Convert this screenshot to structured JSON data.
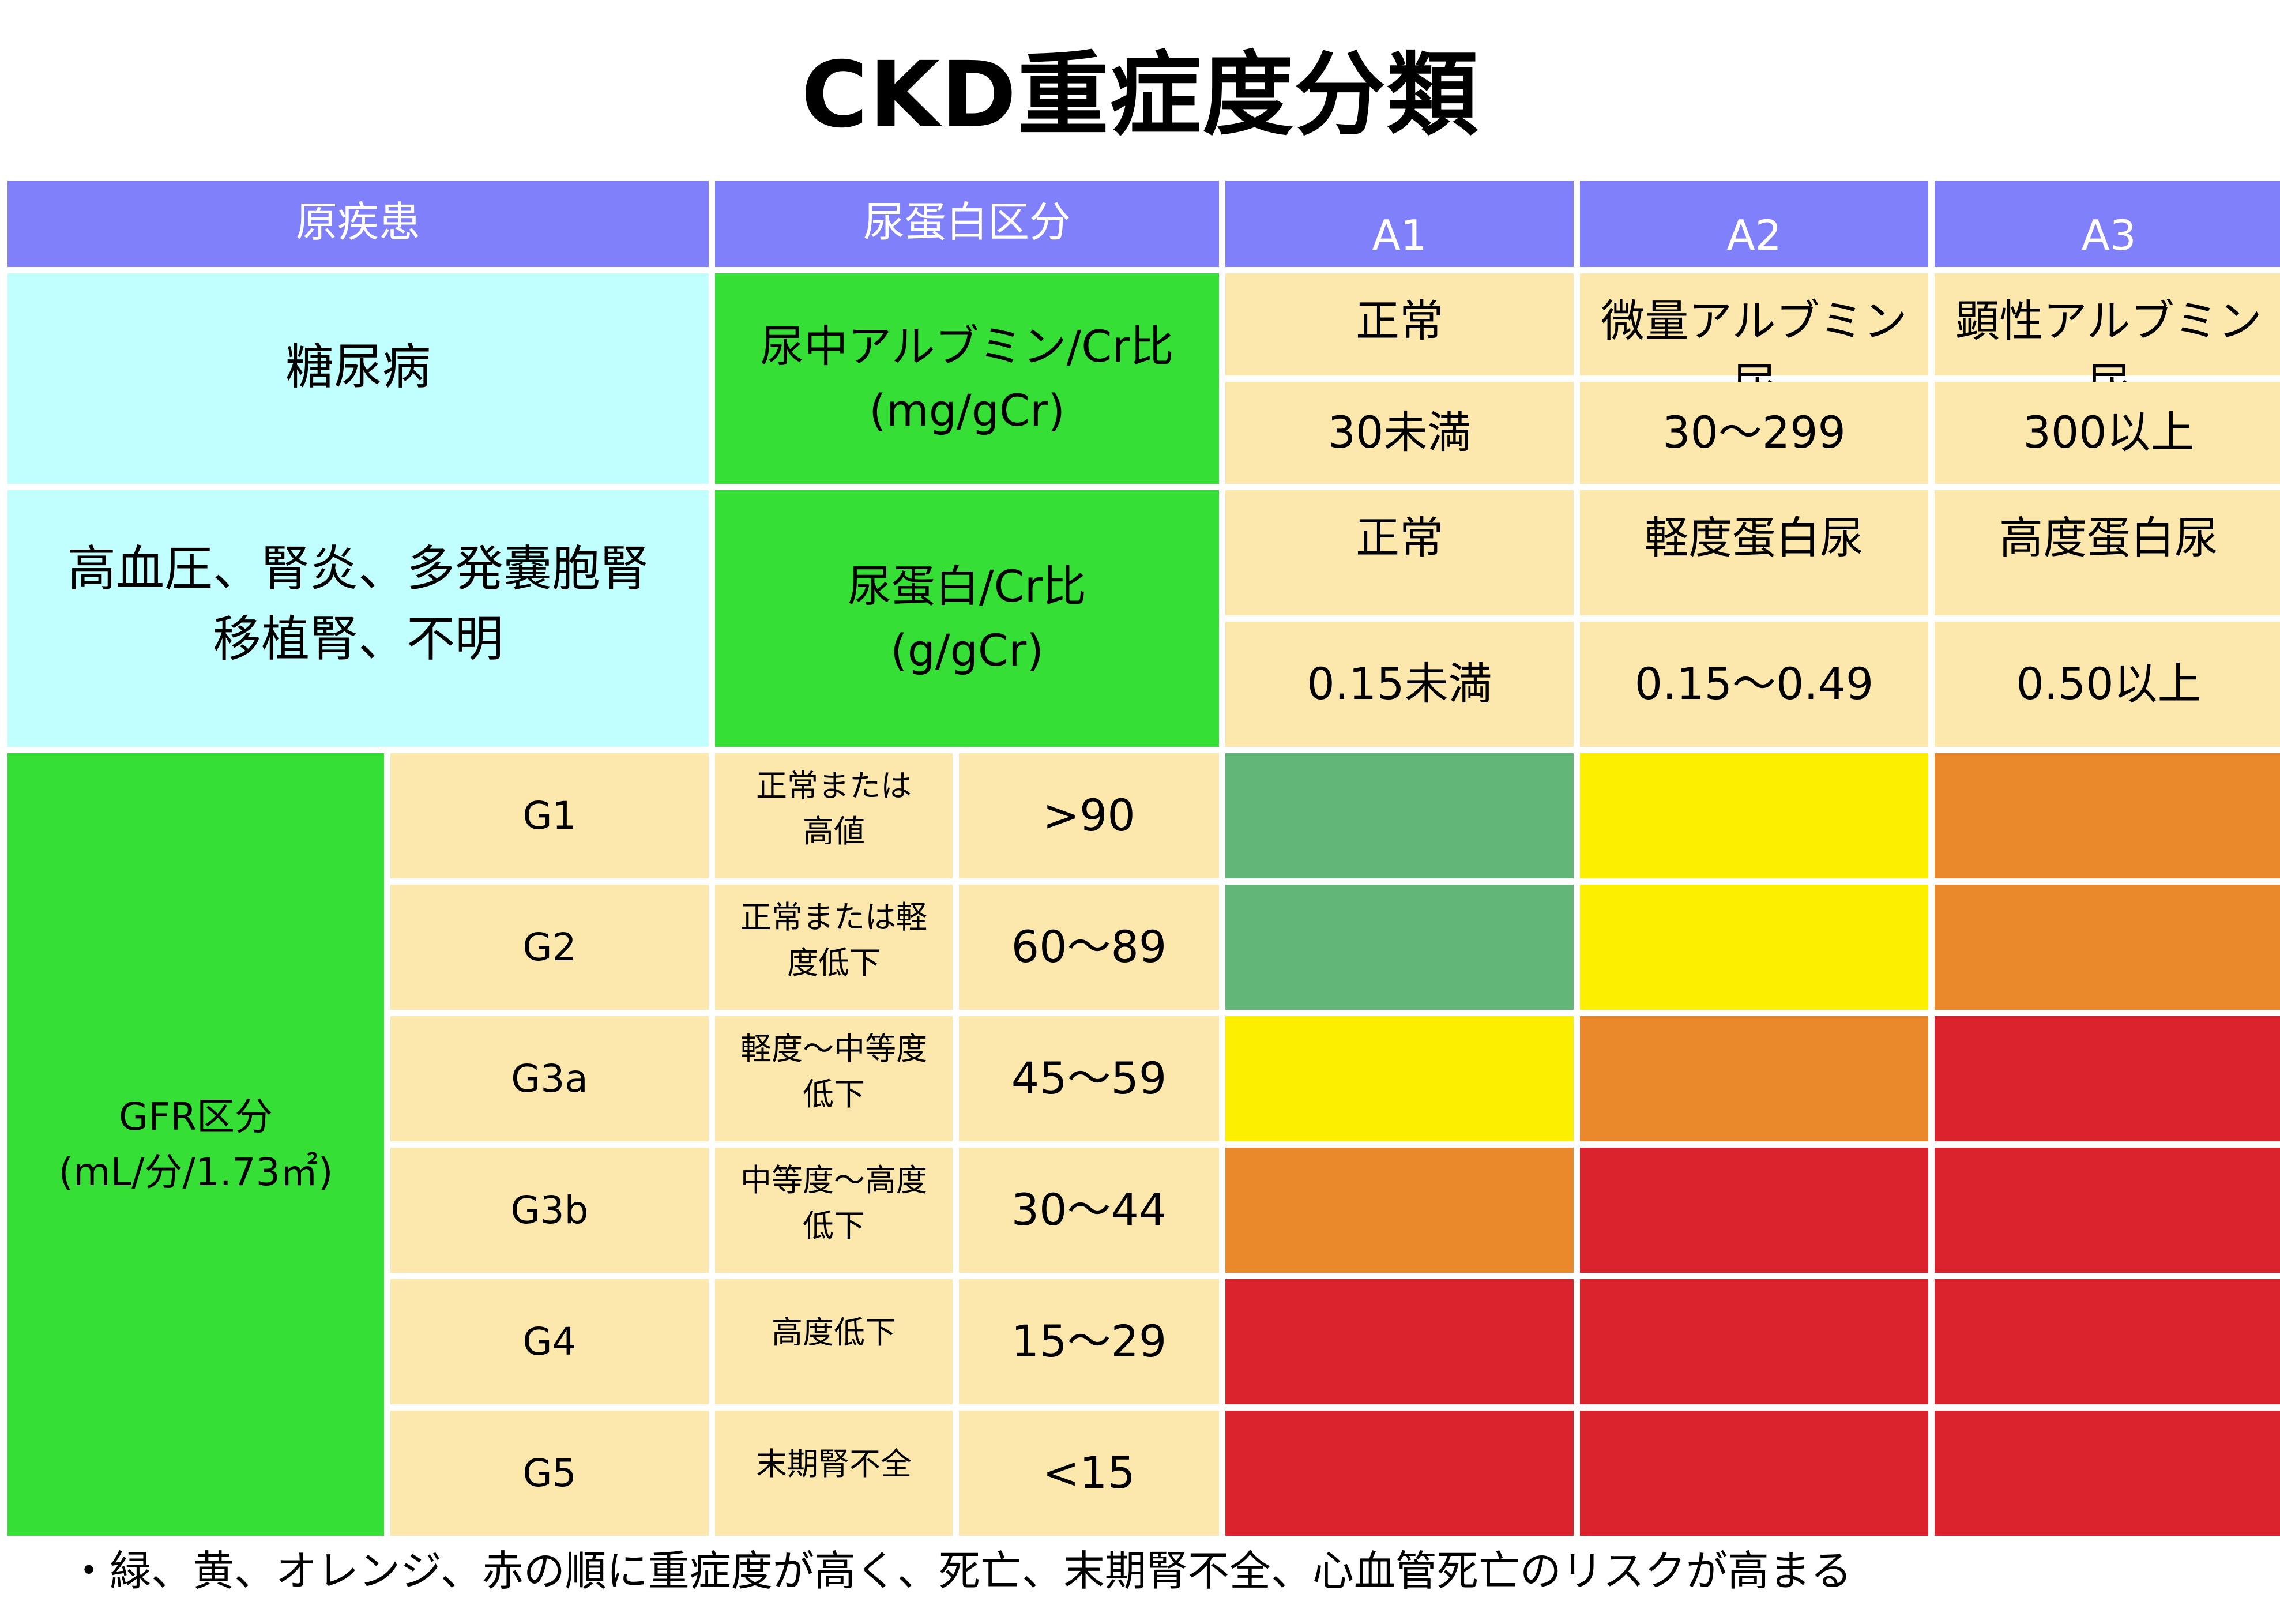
{
  "title": "CKD重症度分類",
  "header": {
    "disease_label": "原疾患",
    "protein_label": "尿蛋白区分",
    "a1": "A1",
    "a2": "A2",
    "a3": "A3"
  },
  "diabetes": {
    "label": "糖尿病",
    "measure_line1": "尿中アルブミン/Cr比",
    "measure_line2": "(mg/gCr)",
    "a1_name": "正常",
    "a2_name": "微量アルブミン尿",
    "a3_name": "顕性アルブミン尿",
    "a1_value": "30未満",
    "a2_value": "30〜299",
    "a3_value": "300以上"
  },
  "other": {
    "label_line1": "高血圧、腎炎、多発嚢胞腎",
    "label_line2": "移植腎、不明",
    "measure_line1": "尿蛋白/Cr比",
    "measure_line2": "(g/gCr)",
    "a1_name": "正常",
    "a2_name": "軽度蛋白尿",
    "a3_name": "高度蛋白尿",
    "a1_value": "0.15未満",
    "a2_value": "0.15〜0.49",
    "a3_value": "0.50以上"
  },
  "gfr": {
    "label_line1": "GFR区分",
    "label_line2": "(mL/分/1.73㎡)",
    "rows": [
      {
        "grade": "G1",
        "desc_line1": "正常または",
        "desc_line2": "高値",
        "range": ">90",
        "risk": [
          "green",
          "yellow",
          "orange"
        ]
      },
      {
        "grade": "G2",
        "desc_line1": "正常または軽",
        "desc_line2": "度低下",
        "range": "60〜89",
        "risk": [
          "green",
          "yellow",
          "orange"
        ]
      },
      {
        "grade": "G3a",
        "desc_line1": "軽度〜中等度",
        "desc_line2": "低下",
        "range": "45〜59",
        "risk": [
          "yellow",
          "orange",
          "red"
        ]
      },
      {
        "grade": "G3b",
        "desc_line1": "中等度〜高度",
        "desc_line2": "低下",
        "range": "30〜44",
        "risk": [
          "orange",
          "red",
          "red"
        ]
      },
      {
        "grade": "G4",
        "desc_line1": "高度低下",
        "desc_line2": "",
        "range": "15〜29",
        "risk": [
          "red",
          "red",
          "red"
        ]
      },
      {
        "grade": "G5",
        "desc_line1": "末期腎不全",
        "desc_line2": "",
        "range": "<15",
        "risk": [
          "red",
          "red",
          "red"
        ]
      }
    ]
  },
  "colors": {
    "header": "#8180fb",
    "cyan": "#c1ffff",
    "green_label": "#35df35",
    "beige": "#fce7ad",
    "risk_green": "#62b778",
    "risk_yellow": "#fcf000",
    "risk_orange": "#e9892c",
    "risk_red": "#da232c"
  },
  "footnote": "・緑、黄、オレンジ、赤の順に重症度が高く、死亡、末期腎不全、心血管死亡のリスクが高まる"
}
